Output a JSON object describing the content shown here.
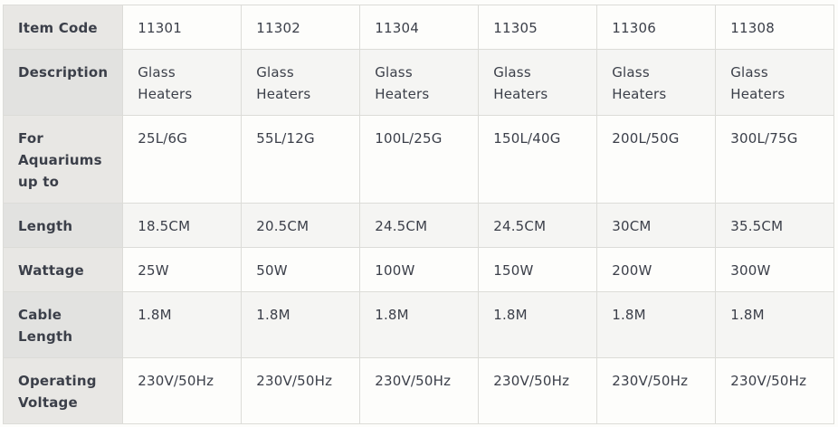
{
  "table": {
    "rows": [
      {
        "label": "Item Code",
        "values": [
          "11301",
          "11302",
          "11304",
          "11305",
          "11306",
          "11308"
        ]
      },
      {
        "label": "Description",
        "values": [
          "Glass Heaters",
          "Glass Heaters",
          "Glass Heaters",
          "Glass Heaters",
          "Glass Heaters",
          "Glass Heaters"
        ]
      },
      {
        "label": "For Aquariums up to",
        "values": [
          "25L/6G",
          "55L/12G",
          "100L/25G",
          "150L/40G",
          "200L/50G",
          "300L/75G"
        ]
      },
      {
        "label": "Length",
        "values": [
          "18.5CM",
          "20.5CM",
          "24.5CM",
          "24.5CM",
          "30CM",
          "35.5CM"
        ]
      },
      {
        "label": "Wattage",
        "values": [
          "25W",
          "50W",
          "100W",
          "150W",
          "200W",
          "300W"
        ]
      },
      {
        "label": "Cable Length",
        "values": [
          "1.8M",
          "1.8M",
          "1.8M",
          "1.8M",
          "1.8M",
          "1.8M"
        ]
      },
      {
        "label": "Operating Voltage",
        "values": [
          "230V/50Hz",
          "230V/50Hz",
          "230V/50Hz",
          "230V/50Hz",
          "230V/50Hz",
          "230V/50Hz"
        ]
      }
    ]
  }
}
